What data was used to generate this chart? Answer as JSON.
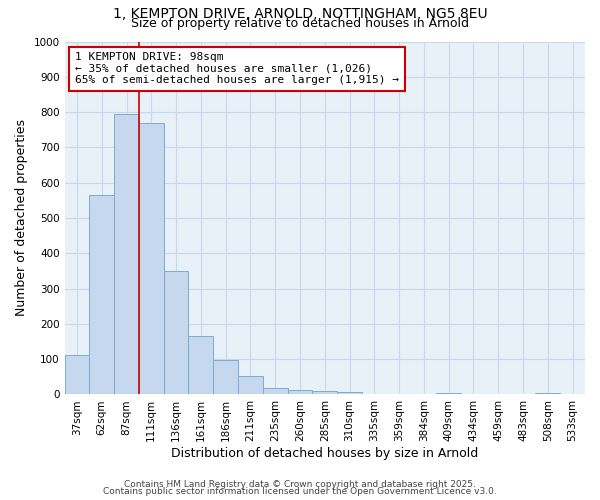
{
  "title1": "1, KEMPTON DRIVE, ARNOLD, NOTTINGHAM, NG5 8EU",
  "title2": "Size of property relative to detached houses in Arnold",
  "xlabel": "Distribution of detached houses by size in Arnold",
  "ylabel": "Number of detached properties",
  "categories": [
    "37sqm",
    "62sqm",
    "87sqm",
    "111sqm",
    "136sqm",
    "161sqm",
    "186sqm",
    "211sqm",
    "235sqm",
    "260sqm",
    "285sqm",
    "310sqm",
    "335sqm",
    "359sqm",
    "384sqm",
    "409sqm",
    "434sqm",
    "459sqm",
    "483sqm",
    "508sqm",
    "533sqm"
  ],
  "values": [
    113,
    565,
    795,
    770,
    350,
    165,
    98,
    52,
    18,
    12,
    10,
    8,
    0,
    0,
    0,
    5,
    0,
    0,
    0,
    5,
    0
  ],
  "bar_color": "#c5d8ee",
  "bar_edge_color": "#7aadd4",
  "grid_color": "#c8d8ec",
  "background_color": "#ffffff",
  "plot_bg_color": "#e8f0f8",
  "red_line_color": "#cc0000",
  "annotation_text": "1 KEMPTON DRIVE: 98sqm\n← 35% of detached houses are smaller (1,026)\n65% of semi-detached houses are larger (1,915) →",
  "annotation_box_color": "#ffffff",
  "annotation_box_edge": "#cc0000",
  "ylim": [
    0,
    1000
  ],
  "yticks": [
    0,
    100,
    200,
    300,
    400,
    500,
    600,
    700,
    800,
    900,
    1000
  ],
  "footer1": "Contains HM Land Registry data © Crown copyright and database right 2025.",
  "footer2": "Contains public sector information licensed under the Open Government Licence v3.0.",
  "title_fontsize": 10,
  "subtitle_fontsize": 9,
  "tick_fontsize": 7.5,
  "label_fontsize": 9,
  "footer_fontsize": 6.5,
  "annotation_fontsize": 8
}
